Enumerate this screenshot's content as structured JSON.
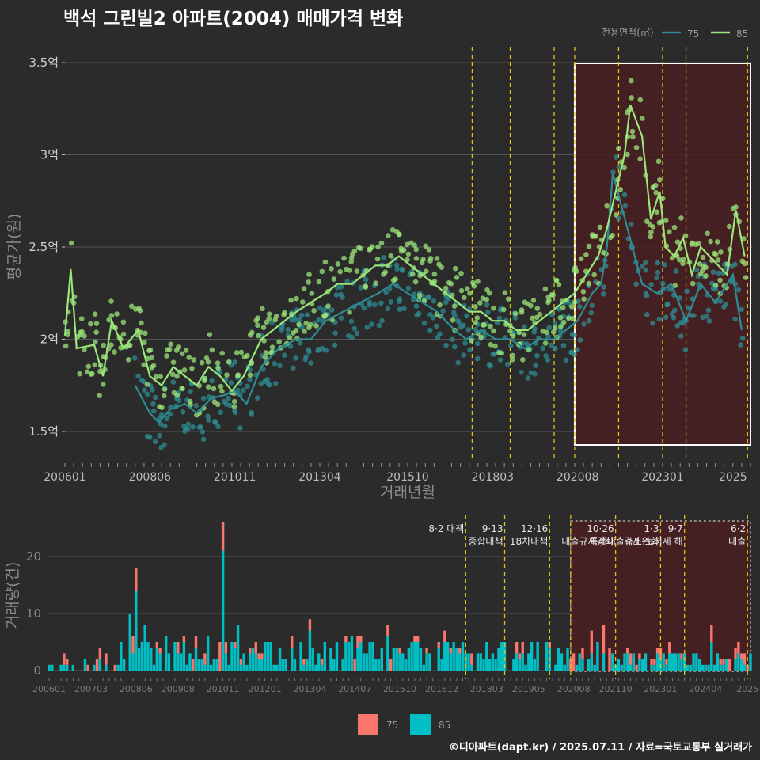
{
  "title": "백석 그린빌2 아파트(2004) 매매가격 변화",
  "credit": "©디아파트(dapt.kr) / 2025.07.11 / 자료=국토교통부 실거래가",
  "colors": {
    "bg": "#2b2b2b",
    "series75_line": "#2e8c93",
    "series85_line": "#9be57a",
    "vol75": "#f8766d",
    "vol85": "#00bfc4",
    "policy_line": "#e3c21a",
    "highlight_fill": "#4a1f22"
  },
  "chart_data": [
    {
      "type": "line",
      "title": "백석 그린빌2 아파트(2004) 매매가격 변화",
      "xlabel": "거래년월",
      "ylabel": "평균가(원)",
      "x_ticks": [
        "200601",
        "200806",
        "201011",
        "201304",
        "201510",
        "201803",
        "202008",
        "202301",
        "2025"
      ],
      "y_ticks": [
        "1.5억",
        "2억",
        "2.5억",
        "3억",
        "3.5억"
      ],
      "ylim": [
        1.3,
        3.6
      ],
      "legend_title": "전용면적(㎡)",
      "legend_position": "top-right",
      "series": [
        {
          "name": "75",
          "color": "#2e8c93",
          "points": [
            [
              "2008-01",
              1.75
            ],
            [
              "2008-06",
              1.6
            ],
            [
              "2008-09",
              1.55
            ],
            [
              "2009-01",
              1.62
            ],
            [
              "2009-06",
              1.65
            ],
            [
              "2009-10",
              1.6
            ],
            [
              "2010-03",
              1.68
            ],
            [
              "2010-08",
              1.7
            ],
            [
              "2010-11",
              1.72
            ],
            [
              "2011-03",
              1.65
            ],
            [
              "2011-08",
              1.85
            ],
            [
              "2012-02",
              1.95
            ],
            [
              "2012-08",
              2.0
            ],
            [
              "2013-01",
              2.0
            ],
            [
              "2013-06",
              2.1
            ],
            [
              "2013-12",
              2.15
            ],
            [
              "2014-06",
              2.2
            ],
            [
              "2014-12",
              2.25
            ],
            [
              "2015-05",
              2.3
            ],
            [
              "2015-10",
              2.25
            ],
            [
              "2016-03",
              2.2
            ],
            [
              "2016-08",
              2.15
            ],
            [
              "2017-02",
              2.05
            ],
            [
              "2017-06",
              2.0
            ],
            [
              "2017-11",
              2.05
            ],
            [
              "2018-04",
              2.0
            ],
            [
              "2018-09",
              2.0
            ],
            [
              "2019-02",
              1.95
            ],
            [
              "2019-07",
              2.0
            ],
            [
              "2019-12",
              2.0
            ],
            [
              "2020-04",
              2.05
            ],
            [
              "2020-08",
              2.1
            ],
            [
              "2021-01",
              2.25
            ],
            [
              "2021-04",
              2.3
            ],
            [
              "2021-06",
              2.5
            ],
            [
              "2021-08",
              2.9
            ],
            [
              "2022-06",
              2.3
            ],
            [
              "2022-11",
              2.25
            ],
            [
              "2023-04",
              2.3
            ],
            [
              "2023-09",
              2.1
            ],
            [
              "2024-02",
              2.3
            ],
            [
              "2024-07",
              2.2
            ],
            [
              "2025-01",
              2.35
            ],
            [
              "2025-04",
              2.05
            ]
          ]
        },
        {
          "name": "85",
          "color": "#9be57a",
          "points": [
            [
              "2006-01",
              2.02
            ],
            [
              "2006-03",
              2.38
            ],
            [
              "2006-05",
              1.95
            ],
            [
              "2006-11",
              1.97
            ],
            [
              "2007-02",
              1.8
            ],
            [
              "2007-05",
              2.1
            ],
            [
              "2007-09",
              1.95
            ],
            [
              "2008-02",
              2.05
            ],
            [
              "2008-06",
              1.8
            ],
            [
              "2008-10",
              1.75
            ],
            [
              "2009-02",
              1.85
            ],
            [
              "2009-06",
              1.8
            ],
            [
              "2009-10",
              1.75
            ],
            [
              "2010-02",
              1.85
            ],
            [
              "2010-06",
              1.8
            ],
            [
              "2010-10",
              1.72
            ],
            [
              "2011-02",
              1.8
            ],
            [
              "2011-05",
              1.9
            ],
            [
              "2011-08",
              2.0
            ],
            [
              "2011-12",
              2.05
            ],
            [
              "2012-04",
              2.1
            ],
            [
              "2012-08",
              2.15
            ],
            [
              "2013-01",
              2.2
            ],
            [
              "2013-06",
              2.25
            ],
            [
              "2013-10",
              2.3
            ],
            [
              "2014-03",
              2.3
            ],
            [
              "2014-07",
              2.35
            ],
            [
              "2014-11",
              2.4
            ],
            [
              "2015-03",
              2.4
            ],
            [
              "2015-07",
              2.45
            ],
            [
              "2015-11",
              2.4
            ],
            [
              "2016-03",
              2.35
            ],
            [
              "2016-07",
              2.3
            ],
            [
              "2016-11",
              2.25
            ],
            [
              "2017-03",
              2.2
            ],
            [
              "2017-07",
              2.15
            ],
            [
              "2017-11",
              2.15
            ],
            [
              "2018-03",
              2.1
            ],
            [
              "2018-07",
              2.1
            ],
            [
              "2018-11",
              2.05
            ],
            [
              "2019-03",
              2.05
            ],
            [
              "2019-07",
              2.1
            ],
            [
              "2019-11",
              2.15
            ],
            [
              "2020-03",
              2.2
            ],
            [
              "2020-07",
              2.25
            ],
            [
              "2020-11",
              2.35
            ],
            [
              "2021-03",
              2.45
            ],
            [
              "2021-06",
              2.6
            ],
            [
              "2021-09",
              2.8
            ],
            [
              "2021-12",
              3.0
            ],
            [
              "2022-02",
              3.27
            ],
            [
              "2022-06",
              3.1
            ],
            [
              "2022-09",
              2.65
            ],
            [
              "2022-12",
              2.8
            ],
            [
              "2023-02",
              2.5
            ],
            [
              "2023-05",
              2.45
            ],
            [
              "2023-08",
              2.55
            ],
            [
              "2023-11",
              2.35
            ],
            [
              "2024-02",
              2.5
            ],
            [
              "2024-05",
              2.45
            ],
            [
              "2024-08",
              2.4
            ],
            [
              "2024-11",
              2.35
            ],
            [
              "2025-02",
              2.7
            ],
            [
              "2025-05",
              2.45
            ]
          ]
        }
      ]
    },
    {
      "type": "bar",
      "stacked": true,
      "ylabel": "거래량(건)",
      "ylim": [
        0,
        27
      ],
      "y_ticks": [
        "0",
        "10",
        "20"
      ],
      "x_ticks": [
        "200601",
        "200703",
        "200806",
        "200908",
        "201011",
        "201201",
        "201304",
        "201407",
        "201510",
        "201612",
        "201803",
        "201905",
        "202008",
        "202110",
        "202301",
        "202404",
        "2025"
      ],
      "series": [
        {
          "name": "75",
          "color": "#f8766d",
          "values": [
            [
              "2008-05",
              3
            ],
            [
              "2008-06",
              4
            ],
            [
              "2010-10",
              5
            ],
            [
              "2010-11",
              5
            ],
            [
              "2013-04",
              2
            ],
            [
              "2015-06",
              2
            ],
            [
              "2020-08",
              3
            ],
            [
              "2021-02",
              4
            ],
            [
              "2021-06",
              5
            ],
            [
              "2021-08",
              4
            ],
            [
              "2024-06",
              3
            ]
          ]
        },
        {
          "name": "85",
          "color": "#00bfc4",
          "values": [
            [
              "2006-02",
              1
            ],
            [
              "2006-05",
              1
            ],
            [
              "2007-01",
              2
            ],
            [
              "2007-06",
              2
            ],
            [
              "2008-01",
              5
            ],
            [
              "2008-04",
              10
            ],
            [
              "2008-06",
              14
            ],
            [
              "2008-09",
              8
            ],
            [
              "2009-04",
              6
            ],
            [
              "2009-10",
              5
            ],
            [
              "2010-06",
              6
            ],
            [
              "2010-11",
              21
            ],
            [
              "2011-04",
              8
            ],
            [
              "2012-03",
              5
            ],
            [
              "2013-04",
              7
            ],
            [
              "2014-06",
              6
            ],
            [
              "2015-06",
              6
            ],
            [
              "2016-05",
              4
            ],
            [
              "2017-06",
              3
            ],
            [
              "2018-05",
              3
            ],
            [
              "2019-05",
              3
            ],
            [
              "2020-06",
              4
            ],
            [
              "2021-04",
              5
            ],
            [
              "2021-09",
              3
            ],
            [
              "2022-06",
              2
            ],
            [
              "2023-05",
              3
            ],
            [
              "2024-06",
              5
            ],
            [
              "2025-03",
              3
            ]
          ]
        }
      ]
    }
  ],
  "policies": [
    {
      "date": "2017-08",
      "label": "8·2 대책"
    },
    {
      "date": "2018-09",
      "label": "9·13\n종합대책"
    },
    {
      "date": "2019-12",
      "label": "12·16\n18차대책"
    },
    {
      "date": "2020-07",
      "label": ""
    },
    {
      "date": "2021-10",
      "label": "10·26\n대출규제강화"
    },
    {
      "date": "2023-01",
      "label": "1·3\n규제완화"
    },
    {
      "date": "2023-09",
      "label": "9·7\n특례대출축소 토허제 해"
    },
    {
      "date": "2025-06",
      "label": "6·2\n대출"
    }
  ],
  "volume_legend": [
    {
      "name": "75",
      "color": "#f8766d"
    },
    {
      "name": "85",
      "color": "#00bfc4"
    }
  ]
}
